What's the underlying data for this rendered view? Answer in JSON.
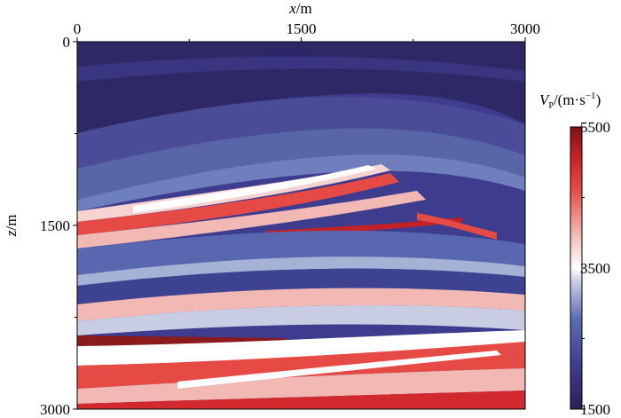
{
  "chart_data": [
    {
      "type": "heatmap",
      "subtype": "velocity-model",
      "title": "",
      "xlabel": "x/m",
      "ylabel": "z/m",
      "xaxis_position": "top",
      "xlim": [
        0,
        3000
      ],
      "ylim": [
        0,
        3000
      ],
      "y_inverted": true,
      "x_ticks": [
        0,
        1500,
        3000
      ],
      "y_ticks": [
        0,
        1500,
        3000
      ],
      "grid": false,
      "colorbar": {
        "label_html": "V<tspan font-size='11' dy='3'>P</tspan><tspan dy='-3'>/(m·s</tspan><tspan font-size='11' dy='-6'>−1</tspan><tspan dy='6'>)</tspan>",
        "label_text": "VP/(m·s⁻¹)",
        "vmin": 1500,
        "vmax": 5500,
        "ticks": [
          1500,
          3500,
          5500
        ],
        "colormap": "seismic-like (dark blue → white → dark red)",
        "stops": [
          "#2e1f5c",
          "#3d3c8e",
          "#5a6db3",
          "#c9cde4",
          "#ffffff",
          "#f2b9b4",
          "#e64a45",
          "#c42127",
          "#7a1215"
        ],
        "position": "right"
      },
      "layers": [
        {
          "name": "shallow dark layer",
          "vp_m_per_s": 1800,
          "z_top_m": 0,
          "z_bottom_m": 500
        },
        {
          "name": "upper blue layers",
          "vp_m_per_s": 2200,
          "z_top_m": 500,
          "z_bottom_m": 1150
        },
        {
          "name": "white reflector",
          "vp_m_per_s": 3600,
          "z_top_m": 1150,
          "z_bottom_m": 1300
        },
        {
          "name": "red layers",
          "vp_m_per_s": 4200,
          "z_top_m": 1300,
          "z_bottom_m": 1600
        },
        {
          "name": "middle blue layers",
          "vp_m_per_s": 2500,
          "z_top_m": 1600,
          "z_bottom_m": 2200
        },
        {
          "name": "high velocity salt layer",
          "vp_m_per_s": 5500,
          "z_top_m": 2300,
          "z_bottom_m": 2400
        },
        {
          "name": "deep red/white layers",
          "vp_m_per_s": 4500,
          "z_top_m": 2400,
          "z_bottom_m": 3000
        }
      ]
    }
  ]
}
